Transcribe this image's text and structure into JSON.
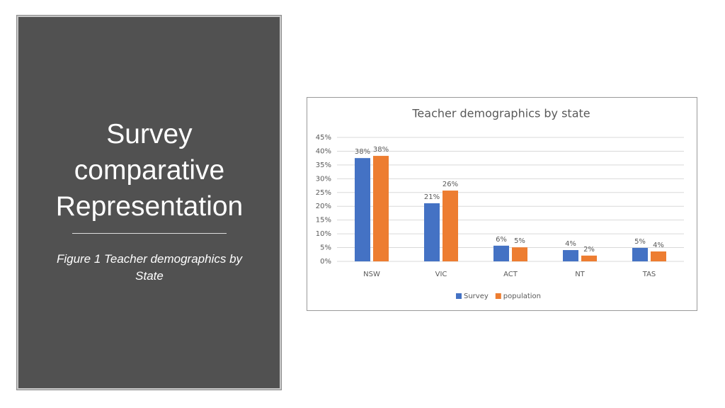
{
  "slide": {
    "title": "Survey comparative Representation",
    "caption": "Figure 1 Teacher demographics by State"
  },
  "chart_data": {
    "type": "bar",
    "title": "Teacher demographics by state",
    "categories": [
      "NSW",
      "VIC",
      "ACT",
      "NT",
      "TAS"
    ],
    "series": [
      {
        "name": "Survey",
        "color": "#4472c4",
        "values": [
          37.5,
          21.1,
          5.7,
          4.1,
          4.9
        ],
        "value_labels": [
          "38%",
          "21%",
          "6%",
          "4%",
          "5%"
        ]
      },
      {
        "name": "population",
        "color": "#ed7d31",
        "values": [
          38.3,
          25.7,
          5.1,
          2.1,
          3.6
        ],
        "value_labels": [
          "38%",
          "26%",
          "5%",
          "2%",
          "4%"
        ]
      }
    ],
    "ylim": [
      0,
      45
    ],
    "yticks": [
      {
        "value": 0,
        "label": "0%"
      },
      {
        "value": 5,
        "label": "5%"
      },
      {
        "value": 10,
        "label": "10%"
      },
      {
        "value": 15,
        "label": "15%"
      },
      {
        "value": 20,
        "label": "20%"
      },
      {
        "value": 25,
        "label": "25%"
      },
      {
        "value": 30,
        "label": "30%"
      },
      {
        "value": 35,
        "label": "35%"
      },
      {
        "value": 40,
        "label": "40%"
      },
      {
        "value": 45,
        "label": "45%"
      }
    ],
    "grid": true,
    "legend": "bottom"
  }
}
